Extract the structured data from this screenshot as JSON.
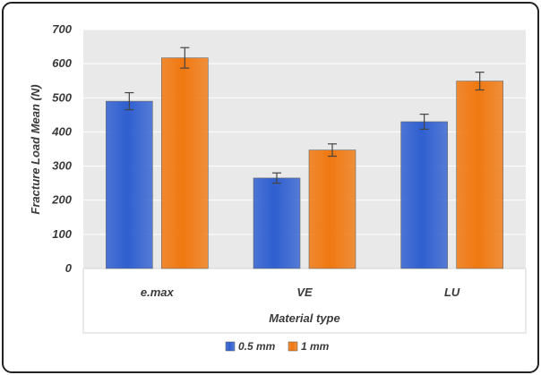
{
  "chart_data": {
    "type": "bar",
    "categories": [
      "e.max",
      "VE",
      "LU"
    ],
    "series": [
      {
        "name": "0.5 mm",
        "values": [
          490,
          265,
          430
        ],
        "errors": [
          25,
          15,
          22
        ],
        "color": "#2f5fd0"
      },
      {
        "name": "1 mm",
        "values": [
          617,
          347,
          549
        ],
        "errors": [
          30,
          18,
          26
        ],
        "color": "#f07810"
      }
    ],
    "xlabel": "Material type",
    "ylabel": "Fracture Load  Mean (N)",
    "ylim": [
      0,
      700
    ],
    "yticks": [
      "0",
      "100",
      "200",
      "300",
      "400",
      "500",
      "600",
      "700"
    ],
    "grid": true,
    "legend_position": "bottom",
    "colors": {
      "plot_background": "#e9e9e9",
      "chart_background": "#ffffff",
      "grid": "#ffffff",
      "frame": "#222222"
    }
  }
}
